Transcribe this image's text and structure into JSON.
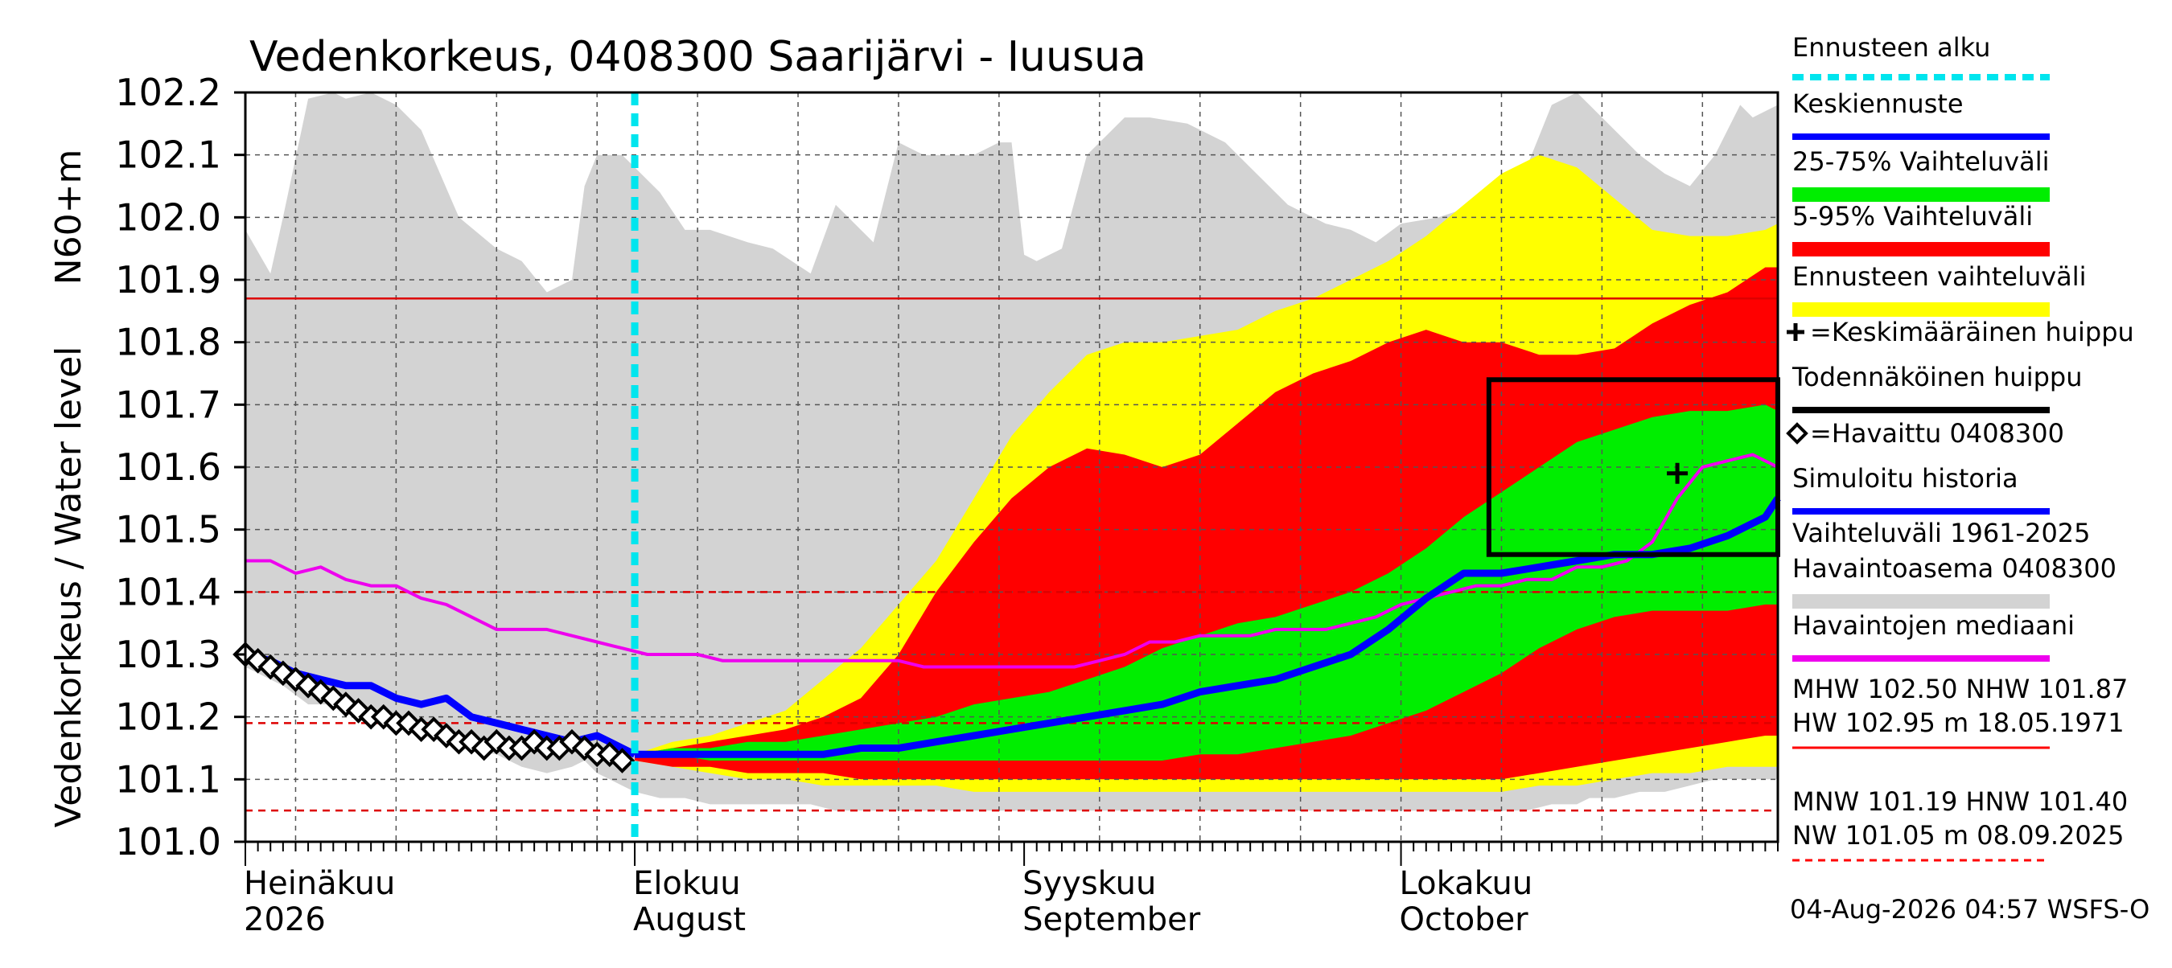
{
  "chart_data": {
    "type": "area",
    "title": "Vedenkorkeus, 0408300 Saarijärvi - Iuusua",
    "ylabel_top": "N60+m",
    "ylabel": "Vedenkorkeus / Water level",
    "ylim": [
      101.0,
      102.2
    ],
    "yticks": [
      "101.0",
      "101.1",
      "101.2",
      "101.3",
      "101.4",
      "101.5",
      "101.6",
      "101.7",
      "101.8",
      "101.9",
      "102.0",
      "102.1",
      "102.2"
    ],
    "x_start": "2026-07-01",
    "x_end": "2026-10-31",
    "xtick_labels": [
      {
        "day": 0,
        "fi": "Heinäkuu",
        "en": "2026"
      },
      {
        "day": 31,
        "fi": "Elokuu",
        "en": "August"
      },
      {
        "day": 62,
        "fi": "Syyskuu",
        "en": "September"
      },
      {
        "day": 92,
        "fi": "Lokakuu",
        "en": "October"
      }
    ],
    "grid": true,
    "forecast_start_day": 31,
    "reference_lines": [
      {
        "name": "NHW",
        "value": 101.87,
        "style": "solid"
      },
      {
        "name": "HNW",
        "value": 101.4,
        "style": "dashed"
      },
      {
        "name": "MNW",
        "value": 101.19,
        "style": "dashed"
      },
      {
        "name": "NW",
        "value": 101.05,
        "style": "dashed"
      }
    ],
    "bands": {
      "history_range": {
        "x": [
          0,
          2,
          3,
          5,
          7,
          8,
          10,
          12,
          14,
          17,
          20,
          22,
          24,
          26,
          27,
          28,
          30,
          31,
          33,
          35,
          37,
          40,
          42,
          45,
          47,
          50,
          52,
          54,
          56,
          58,
          60,
          61,
          62,
          63,
          65,
          67,
          70,
          72,
          75,
          78,
          80,
          83,
          86,
          88,
          90,
          92,
          95,
          98,
          100,
          102,
          104,
          106,
          107,
          109,
          111,
          113,
          115,
          117,
          119,
          120,
          122
        ],
        "upper": [
          101.98,
          101.91,
          102.0,
          102.19,
          102.2,
          102.19,
          102.2,
          102.18,
          102.14,
          102.0,
          101.95,
          101.93,
          101.88,
          101.9,
          102.05,
          102.1,
          102.1,
          102.08,
          102.04,
          101.98,
          101.98,
          101.96,
          101.95,
          101.91,
          102.02,
          101.96,
          102.12,
          102.1,
          102.1,
          102.1,
          102.12,
          102.12,
          101.94,
          101.93,
          101.95,
          102.1,
          102.16,
          102.16,
          102.15,
          102.12,
          102.08,
          102.02,
          101.99,
          101.98,
          101.96,
          101.99,
          102.0,
          102.02,
          102.04,
          102.08,
          102.18,
          102.2,
          102.18,
          102.14,
          102.1,
          102.07,
          102.05,
          102.1,
          102.18,
          102.16,
          102.18
        ],
        "lower": [
          101.28,
          101.26,
          101.25,
          101.22,
          101.22,
          101.21,
          101.2,
          101.19,
          101.18,
          101.15,
          101.14,
          101.12,
          101.11,
          101.12,
          101.13,
          101.11,
          101.09,
          101.08,
          101.07,
          101.07,
          101.06,
          101.06,
          101.06,
          101.06,
          101.05,
          101.05,
          101.05,
          101.05,
          101.05,
          101.05,
          101.05,
          101.05,
          101.05,
          101.05,
          101.05,
          101.05,
          101.05,
          101.05,
          101.05,
          101.05,
          101.05,
          101.05,
          101.05,
          101.05,
          101.05,
          101.05,
          101.05,
          101.05,
          101.05,
          101.05,
          101.06,
          101.06,
          101.07,
          101.07,
          101.08,
          101.08,
          101.09,
          101.1,
          101.1,
          101.1,
          101.1
        ]
      },
      "forecast_range": {
        "x": [
          31,
          34,
          37,
          40,
          43,
          46,
          49,
          52,
          55,
          58,
          61,
          64,
          67,
          70,
          73,
          76,
          79,
          82,
          85,
          88,
          91,
          94,
          97,
          100,
          103,
          106,
          109,
          112,
          115,
          118,
          121,
          122
        ],
        "upper": [
          101.14,
          101.16,
          101.17,
          101.19,
          101.21,
          101.26,
          101.31,
          101.38,
          101.45,
          101.55,
          101.65,
          101.72,
          101.78,
          101.8,
          101.8,
          101.81,
          101.82,
          101.85,
          101.87,
          101.9,
          101.93,
          101.97,
          102.02,
          102.07,
          102.1,
          102.08,
          102.03,
          101.98,
          101.97,
          101.97,
          101.98,
          101.99
        ],
        "lower": [
          101.13,
          101.12,
          101.11,
          101.1,
          101.1,
          101.09,
          101.09,
          101.09,
          101.09,
          101.08,
          101.08,
          101.08,
          101.08,
          101.08,
          101.08,
          101.08,
          101.08,
          101.08,
          101.08,
          101.08,
          101.08,
          101.08,
          101.08,
          101.08,
          101.09,
          101.09,
          101.1,
          101.11,
          101.11,
          101.12,
          101.12,
          101.12
        ]
      },
      "p5_95": {
        "x": [
          31,
          34,
          37,
          40,
          43,
          46,
          49,
          52,
          55,
          58,
          61,
          64,
          67,
          70,
          73,
          76,
          79,
          82,
          85,
          88,
          91,
          94,
          97,
          100,
          103,
          106,
          109,
          112,
          115,
          118,
          121,
          122
        ],
        "upper": [
          101.14,
          101.15,
          101.16,
          101.17,
          101.18,
          101.2,
          101.23,
          101.3,
          101.4,
          101.48,
          101.55,
          101.6,
          101.63,
          101.62,
          101.6,
          101.62,
          101.67,
          101.72,
          101.75,
          101.77,
          101.8,
          101.82,
          101.8,
          101.8,
          101.78,
          101.78,
          101.79,
          101.83,
          101.86,
          101.88,
          101.92,
          101.92
        ],
        "lower": [
          101.13,
          101.12,
          101.12,
          101.11,
          101.11,
          101.11,
          101.1,
          101.1,
          101.1,
          101.1,
          101.1,
          101.1,
          101.1,
          101.1,
          101.1,
          101.1,
          101.1,
          101.1,
          101.1,
          101.1,
          101.1,
          101.1,
          101.1,
          101.1,
          101.11,
          101.12,
          101.13,
          101.14,
          101.15,
          101.16,
          101.17,
          101.17
        ]
      },
      "p25_75": {
        "x": [
          31,
          34,
          37,
          40,
          43,
          46,
          49,
          52,
          55,
          58,
          61,
          64,
          67,
          70,
          73,
          76,
          79,
          82,
          85,
          88,
          91,
          94,
          97,
          100,
          103,
          106,
          109,
          112,
          115,
          118,
          121,
          122
        ],
        "upper": [
          101.14,
          101.15,
          101.15,
          101.16,
          101.16,
          101.17,
          101.18,
          101.19,
          101.2,
          101.22,
          101.23,
          101.24,
          101.26,
          101.28,
          101.31,
          101.33,
          101.35,
          101.36,
          101.38,
          101.4,
          101.43,
          101.47,
          101.52,
          101.56,
          101.6,
          101.64,
          101.66,
          101.68,
          101.69,
          101.69,
          101.7,
          101.69
        ],
        "lower": [
          101.14,
          101.14,
          101.13,
          101.13,
          101.13,
          101.13,
          101.13,
          101.13,
          101.13,
          101.13,
          101.13,
          101.13,
          101.13,
          101.13,
          101.13,
          101.14,
          101.14,
          101.15,
          101.16,
          101.17,
          101.19,
          101.21,
          101.24,
          101.27,
          101.31,
          101.34,
          101.36,
          101.37,
          101.37,
          101.37,
          101.38,
          101.38
        ]
      }
    },
    "series": [
      {
        "name": "Havaintojen mediaani",
        "x": [
          0,
          2,
          4,
          6,
          8,
          10,
          12,
          14,
          16,
          18,
          20,
          22,
          24,
          26,
          28,
          30,
          32,
          34,
          36,
          38,
          40,
          42,
          44,
          46,
          48,
          50,
          52,
          54,
          56,
          58,
          60,
          62,
          64,
          66,
          68,
          70,
          72,
          74,
          76,
          78,
          80,
          82,
          84,
          86,
          88,
          90,
          92,
          94,
          96,
          98,
          100,
          102,
          104,
          106,
          108,
          110,
          112,
          114,
          116,
          118,
          120,
          122
        ],
        "values": [
          101.45,
          101.45,
          101.43,
          101.44,
          101.42,
          101.41,
          101.41,
          101.39,
          101.38,
          101.36,
          101.34,
          101.34,
          101.34,
          101.33,
          101.32,
          101.31,
          101.3,
          101.3,
          101.3,
          101.29,
          101.29,
          101.29,
          101.29,
          101.29,
          101.29,
          101.29,
          101.29,
          101.28,
          101.28,
          101.28,
          101.28,
          101.28,
          101.28,
          101.28,
          101.29,
          101.3,
          101.32,
          101.32,
          101.33,
          101.33,
          101.33,
          101.34,
          101.34,
          101.34,
          101.35,
          101.36,
          101.38,
          101.39,
          101.4,
          101.41,
          101.41,
          101.42,
          101.42,
          101.44,
          101.44,
          101.45,
          101.48,
          101.55,
          101.6,
          101.61,
          101.62,
          101.6
        ]
      },
      {
        "name": "Keskiennuste",
        "x": [
          31,
          34,
          37,
          40,
          43,
          46,
          49,
          52,
          55,
          58,
          61,
          64,
          67,
          70,
          73,
          76,
          79,
          82,
          85,
          88,
          91,
          94,
          97,
          100,
          103,
          106,
          109,
          112,
          115,
          118,
          121,
          122
        ],
        "values": [
          101.14,
          101.14,
          101.14,
          101.14,
          101.14,
          101.14,
          101.15,
          101.15,
          101.16,
          101.17,
          101.18,
          101.19,
          101.2,
          101.21,
          101.22,
          101.24,
          101.25,
          101.26,
          101.28,
          101.3,
          101.34,
          101.39,
          101.43,
          101.43,
          101.44,
          101.45,
          101.46,
          101.46,
          101.47,
          101.49,
          101.52,
          101.55
        ]
      },
      {
        "name": "Simuloitu historia",
        "x": [
          0,
          2,
          4,
          6,
          8,
          10,
          12,
          14,
          16,
          18,
          20,
          22,
          24,
          26,
          28,
          30,
          31
        ],
        "values": [
          101.3,
          101.29,
          101.27,
          101.26,
          101.25,
          101.25,
          101.23,
          101.22,
          101.23,
          101.2,
          101.19,
          101.18,
          101.17,
          101.16,
          101.17,
          101.15,
          101.14
        ]
      },
      {
        "name": "Havaittu 0408300",
        "x": [
          0,
          1,
          2,
          3,
          4,
          5,
          6,
          7,
          8,
          9,
          10,
          11,
          12,
          13,
          14,
          15,
          16,
          17,
          18,
          19,
          20,
          21,
          22,
          23,
          24,
          25,
          26,
          27,
          28,
          29,
          30
        ],
        "values": [
          101.3,
          101.29,
          101.28,
          101.27,
          101.26,
          101.25,
          101.24,
          101.23,
          101.22,
          101.21,
          101.2,
          101.2,
          101.19,
          101.19,
          101.18,
          101.18,
          101.17,
          101.16,
          101.16,
          101.15,
          101.16,
          101.15,
          101.15,
          101.16,
          101.15,
          101.15,
          101.16,
          101.15,
          101.14,
          101.14,
          101.13
        ]
      }
    ],
    "probable_peak_box": {
      "x0": 99,
      "x1": 122,
      "y0": 101.46,
      "y1": 101.74
    },
    "mean_peak": {
      "x": 114,
      "y": 101.59
    },
    "legend": [
      {
        "label": "Ennusteen alku",
        "color": "#00e5ee",
        "kind": "dashed"
      },
      {
        "label": "Keskiennuste",
        "color": "#0000ff",
        "kind": "line"
      },
      {
        "label": "25-75% Vaihteluväli",
        "color": "#00ee00",
        "kind": "thick"
      },
      {
        "label": "5-95% Vaihteluväli",
        "color": "#ff0000",
        "kind": "thick"
      },
      {
        "label": "Ennusteen vaihteluväli",
        "color": "#ffff00",
        "kind": "thick"
      },
      {
        "label": "=Keskimääräinen huippu",
        "color": "#000000",
        "kind": "plus"
      },
      {
        "label": "Todennäköinen huippu",
        "color": "#000000",
        "kind": "line"
      },
      {
        "label": "=Havaittu 0408300",
        "color": "#000000",
        "kind": "diamond"
      },
      {
        "label": "Simuloitu historia",
        "color": "#0000ff",
        "kind": "line"
      },
      {
        "label": "Vaihteluväli 1961-2025",
        "color": "#d3d3d3",
        "kind": "none"
      },
      {
        "label": "Havaintoasema 0408300",
        "color": "#d3d3d3",
        "kind": "thick"
      },
      {
        "label": "Havaintojen mediaani",
        "color": "#ee00ee",
        "kind": "line"
      }
    ],
    "stats": [
      {
        "line1": "MHW 102.50 NHW 101.87",
        "line2": "HW 102.95 m 18.05.1971",
        "color": "#ff0000",
        "style": "solid"
      },
      {
        "line1": "MNW 101.19 HNW 101.40",
        "line2": "NW 101.05 m 08.09.2025",
        "color": "#ff0000",
        "style": "dashed"
      }
    ],
    "footer": "04-Aug-2026 04:57 WSFS-O",
    "colors": {
      "history": "#d3d3d3",
      "forecast_range": "#ffff00",
      "p5_95": "#ff0000",
      "p25_75": "#00ee00",
      "mean_forecast": "#0000ff",
      "median": "#ee00ee",
      "forecast_start": "#00e5ee",
      "reference": "#dd0000"
    }
  }
}
